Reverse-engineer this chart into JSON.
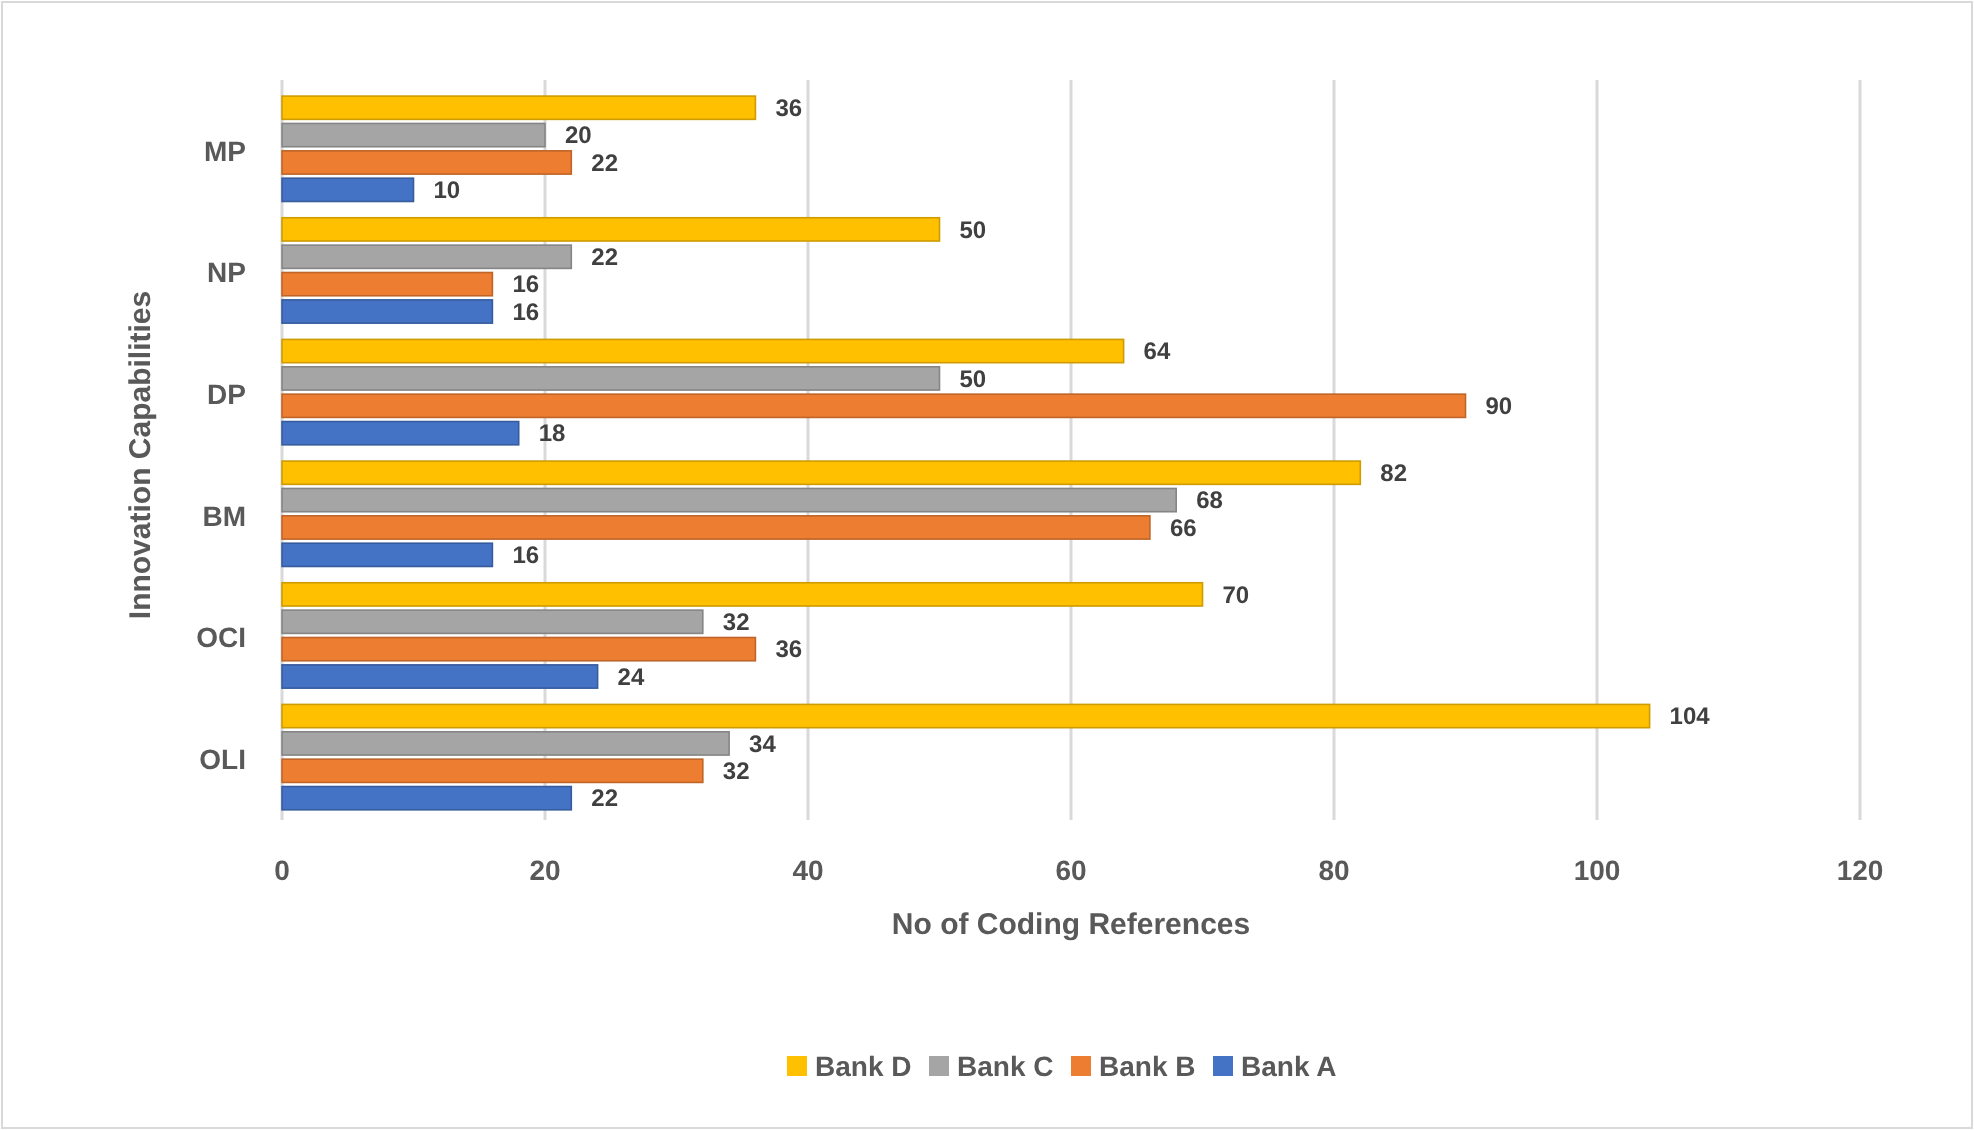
{
  "chart_data": {
    "type": "bar",
    "orientation": "horizontal",
    "xlabel": "No of Coding References",
    "ylabel": "Innovation Capabilities",
    "categories": [
      "MP",
      "NP",
      "DP",
      "BM",
      "OCI",
      "OLI"
    ],
    "series": [
      {
        "name": "Bank D",
        "color": "#ffc000",
        "values": [
          36,
          50,
          64,
          82,
          70,
          104
        ]
      },
      {
        "name": "Bank C",
        "color": "#a5a5a5",
        "values": [
          20,
          22,
          50,
          68,
          32,
          34
        ]
      },
      {
        "name": "Bank B",
        "color": "#ed7d31",
        "values": [
          22,
          16,
          90,
          66,
          36,
          32
        ]
      },
      {
        "name": "Bank A",
        "color": "#4472c4",
        "values": [
          10,
          16,
          18,
          16,
          24,
          22
        ]
      }
    ],
    "xlim": [
      0,
      120
    ],
    "xticks": [
      0,
      20,
      40,
      60,
      80,
      100,
      120
    ],
    "grid": "x",
    "legend": "bottom",
    "data_labels": true
  }
}
